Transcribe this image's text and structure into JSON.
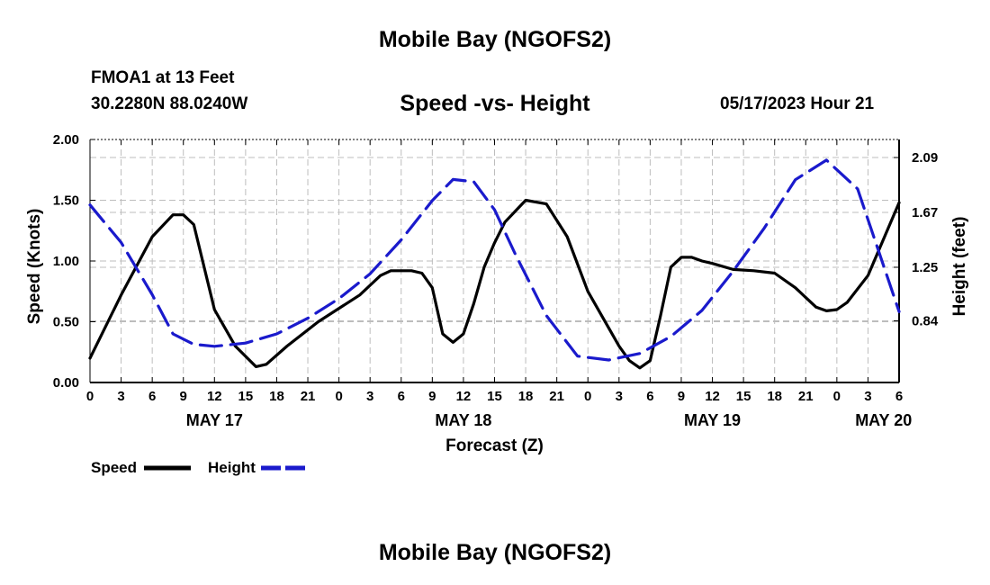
{
  "header": {
    "title": "Mobile Bay (NGOFS2)",
    "station": "FMOA1 at 13 Feet",
    "coords": "30.2280N  88.0240W",
    "subtitle": "Speed -vs- Height",
    "datetime": "05/17/2023 Hour 21",
    "footer_title": "Mobile Bay (NGOFS2)"
  },
  "chart_data": {
    "type": "line",
    "title": "Speed -vs- Height",
    "xlabel": "Forecast (Z)",
    "ylabel": "Speed (Knots)",
    "y2label": "Height (feet)",
    "x_unit": "hours since 00Z May 17",
    "xlim": [
      0,
      78
    ],
    "ylim": [
      0,
      2
    ],
    "y2lim": [
      0.368,
      2.228
    ],
    "x_ticks": [
      0,
      3,
      6,
      9,
      12,
      15,
      18,
      21,
      24,
      27,
      30,
      33,
      36,
      39,
      42,
      45,
      48,
      51,
      54,
      57,
      60,
      63,
      66,
      69,
      72,
      75,
      78
    ],
    "x_tick_labels": [
      "0",
      "3",
      "6",
      "9",
      "12",
      "15",
      "18",
      "21",
      "0",
      "3",
      "6",
      "9",
      "12",
      "15",
      "18",
      "21",
      "0",
      "3",
      "6",
      "9",
      "12",
      "15",
      "18",
      "21",
      "0",
      "3",
      "6"
    ],
    "date_labels": [
      {
        "x": 12,
        "label": "MAY 17"
      },
      {
        "x": 36,
        "label": "MAY 18"
      },
      {
        "x": 60,
        "label": "MAY 19"
      },
      {
        "x": 76.5,
        "label": "MAY 20"
      }
    ],
    "y_ticks": [
      0,
      0.5,
      1,
      1.5,
      2
    ],
    "y_tick_labels": [
      "0.00",
      "0.50",
      "1.00",
      "1.50",
      "2.00"
    ],
    "y2_ticks": [
      0.84,
      1.25,
      1.67,
      2.09
    ],
    "y2_tick_labels": [
      "0.84",
      "1.25",
      "1.67",
      "2.09"
    ],
    "grid": true,
    "legend": "bottom-left",
    "series": [
      {
        "name": "Speed",
        "axis": "left",
        "color": "#000000",
        "dash": "solid",
        "x": [
          0,
          3,
          6,
          8,
          9,
          10,
          12,
          14,
          16,
          17,
          19,
          22,
          26,
          27,
          28,
          29,
          30,
          31,
          32,
          33,
          34,
          35,
          36,
          37,
          38,
          39,
          40,
          42,
          44,
          46,
          48,
          50,
          51,
          52,
          53,
          54,
          55,
          56,
          57,
          58,
          59,
          60,
          62,
          64,
          66,
          68,
          70,
          71,
          72,
          73,
          75,
          78
        ],
        "y": [
          0.2,
          0.72,
          1.2,
          1.38,
          1.38,
          1.3,
          0.6,
          0.3,
          0.13,
          0.15,
          0.3,
          0.5,
          0.72,
          0.8,
          0.88,
          0.92,
          0.92,
          0.92,
          0.9,
          0.78,
          0.4,
          0.33,
          0.4,
          0.65,
          0.95,
          1.15,
          1.32,
          1.5,
          1.47,
          1.2,
          0.75,
          0.45,
          0.3,
          0.18,
          0.12,
          0.18,
          0.55,
          0.95,
          1.03,
          1.03,
          1.0,
          0.98,
          0.93,
          0.92,
          0.9,
          0.78,
          0.62,
          0.59,
          0.6,
          0.66,
          0.88,
          1.48
        ]
      },
      {
        "name": "Height",
        "axis": "right",
        "color": "#1a1acc",
        "dash": "dashed",
        "x": [
          0,
          3,
          6,
          8,
          10,
          12,
          15,
          18,
          21,
          24,
          27,
          30,
          33,
          35,
          37,
          39,
          41,
          44,
          47,
          50,
          53,
          56,
          59,
          62,
          65,
          68,
          71,
          74,
          78
        ],
        "y": [
          1.727,
          1.44,
          1.04,
          0.74,
          0.66,
          0.645,
          0.67,
          0.74,
          0.86,
          1.01,
          1.2,
          1.46,
          1.76,
          1.922,
          1.905,
          1.69,
          1.35,
          0.88,
          0.57,
          0.54,
          0.59,
          0.72,
          0.92,
          1.22,
          1.55,
          1.92,
          2.07,
          1.85,
          0.91
        ]
      }
    ]
  }
}
